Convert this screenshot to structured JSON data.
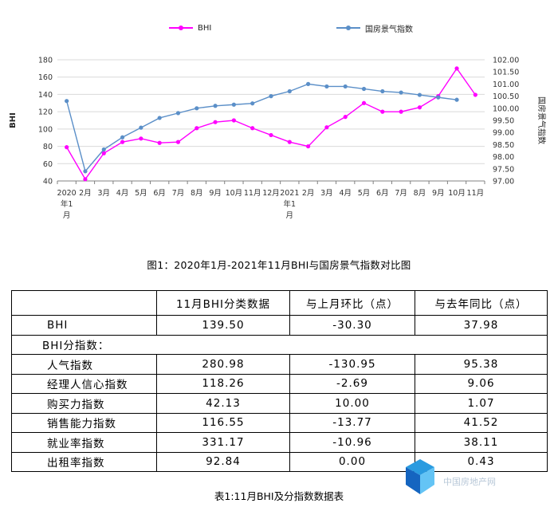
{
  "chart_data": {
    "type": "line",
    "legend_position": "top",
    "categories": [
      "2020年1月",
      "2月",
      "3月",
      "4月",
      "5月",
      "6月",
      "7月",
      "8月",
      "9月",
      "10月",
      "11月",
      "12月",
      "2021年1月",
      "2月",
      "3月",
      "4月",
      "5月",
      "6月",
      "7月",
      "8月",
      "9月",
      "10月",
      "11月"
    ],
    "category_lines": [
      [
        "2020",
        "年1",
        "月"
      ],
      [
        "2月"
      ],
      [
        "3月"
      ],
      [
        "4月"
      ],
      [
        "5月"
      ],
      [
        "6月"
      ],
      [
        "7月"
      ],
      [
        "8月"
      ],
      [
        "9月"
      ],
      [
        "10月"
      ],
      [
        "11月"
      ],
      [
        "12月"
      ],
      [
        "2021",
        "年1",
        "月"
      ],
      [
        "2月"
      ],
      [
        "3月"
      ],
      [
        "4月"
      ],
      [
        "5月"
      ],
      [
        "6月"
      ],
      [
        "7月"
      ],
      [
        "8月"
      ],
      [
        "9月"
      ],
      [
        "10月"
      ],
      [
        "11月"
      ]
    ],
    "y_left": {
      "label": "BHI",
      "min": 40,
      "max": 180,
      "ticks": [
        "40",
        "60",
        "80",
        "100",
        "120",
        "140",
        "160",
        "180"
      ]
    },
    "y_right": {
      "label": "国房景气指数",
      "min": 97.0,
      "max": 102.0,
      "ticks": [
        "97.00",
        "97.50",
        "98.00",
        "98.50",
        "99.00",
        "99.50",
        "100.00",
        "100.50",
        "101.00",
        "101.50",
        "102.00"
      ]
    },
    "series": [
      {
        "name": "BHI",
        "axis": "left",
        "color": "#ff00ff",
        "values": [
          79,
          42,
          72,
          85,
          89,
          84,
          85,
          101,
          108,
          110,
          101,
          93,
          85,
          80,
          102,
          114,
          130,
          120,
          120,
          125,
          138,
          170,
          139.5
        ]
      },
      {
        "name": "国房景气指数",
        "axis": "right",
        "color": "#5b8fc8",
        "values": [
          100.3,
          97.4,
          98.3,
          98.8,
          99.2,
          99.6,
          99.8,
          100.0,
          100.1,
          100.15,
          100.2,
          100.5,
          100.7,
          101.0,
          100.9,
          100.9,
          100.8,
          100.7,
          100.65,
          100.55,
          100.45,
          100.35,
          null
        ]
      }
    ]
  },
  "figure_caption": "图1：2020年1月-2021年11月BHI与国房景气指数对比图",
  "table": {
    "headers": [
      "",
      "11月BHI分类数据",
      "与上月环比（点）",
      "与去年同比（点）"
    ],
    "rows": [
      {
        "label": "BHI",
        "values": [
          "139.50",
          "-30.30",
          "37.98"
        ]
      },
      {
        "label": "BHI分指数：",
        "values": []
      },
      {
        "label": "人气指数",
        "values": [
          "280.98",
          "-130.95",
          "95.38"
        ]
      },
      {
        "label": "经理人信心指数",
        "values": [
          "118.26",
          "-2.69",
          "9.06"
        ]
      },
      {
        "label": "购买力指数",
        "values": [
          "42.13",
          "10.00",
          "1.07"
        ]
      },
      {
        "label": "销售能力指数",
        "values": [
          "116.55",
          "-13.77",
          "41.52"
        ]
      },
      {
        "label": "就业率指数",
        "values": [
          "331.17",
          "-10.96",
          "38.11"
        ]
      },
      {
        "label": "出租率指数",
        "values": [
          "92.84",
          "0.00",
          "0.43"
        ]
      }
    ]
  },
  "table_caption": "表1:11月BHI及分指数数据表",
  "watermark": "中国房地产网",
  "logo_icon": "cube-logo-icon",
  "colors": {
    "bhi": "#ff00ff",
    "guofang": "#5b8fc8",
    "grid": "#d9d9d9",
    "axis": "#808080"
  }
}
